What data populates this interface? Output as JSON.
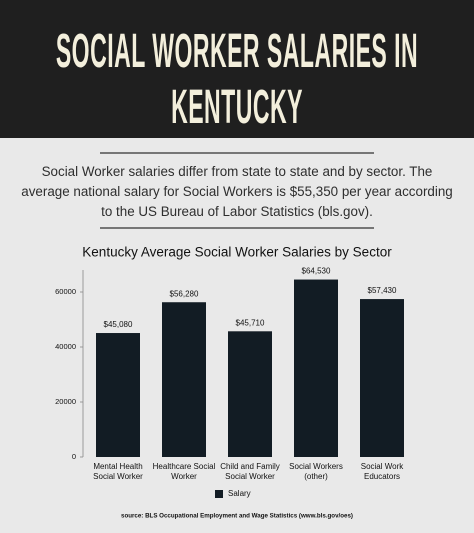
{
  "header": {
    "title": "SOCIAL WORKER SALARIES IN KENTUCKY"
  },
  "intro": "Social Worker salaries differ from state to state and by sector. The average national salary for Social Workers is $55,350 per year according to the US Bureau of Labor Statistics (bls.gov).",
  "chart_data": {
    "type": "bar",
    "title": "Kentucky Average Social Worker Salaries by Sector",
    "categories": [
      "Mental Health Social Worker",
      "Healthcare Social Worker",
      "Child and Family Social Worker",
      "Social Workers (other)",
      "Social Work Educators"
    ],
    "series": [
      {
        "name": "Salary",
        "color": "#121c24",
        "values": [
          45080,
          56280,
          45710,
          64530,
          57430
        ],
        "value_labels": [
          "$45,080",
          "$56,280",
          "$45,710",
          "$64,530",
          "$57,430"
        ]
      }
    ],
    "ylim": [
      0,
      68000
    ],
    "yticks": [
      0,
      20000,
      40000,
      60000
    ],
    "grid": false,
    "legend": "bottom",
    "source": "source: BLS Occupational Employment and Wage Statistics (www.bls.gov/oes)"
  }
}
